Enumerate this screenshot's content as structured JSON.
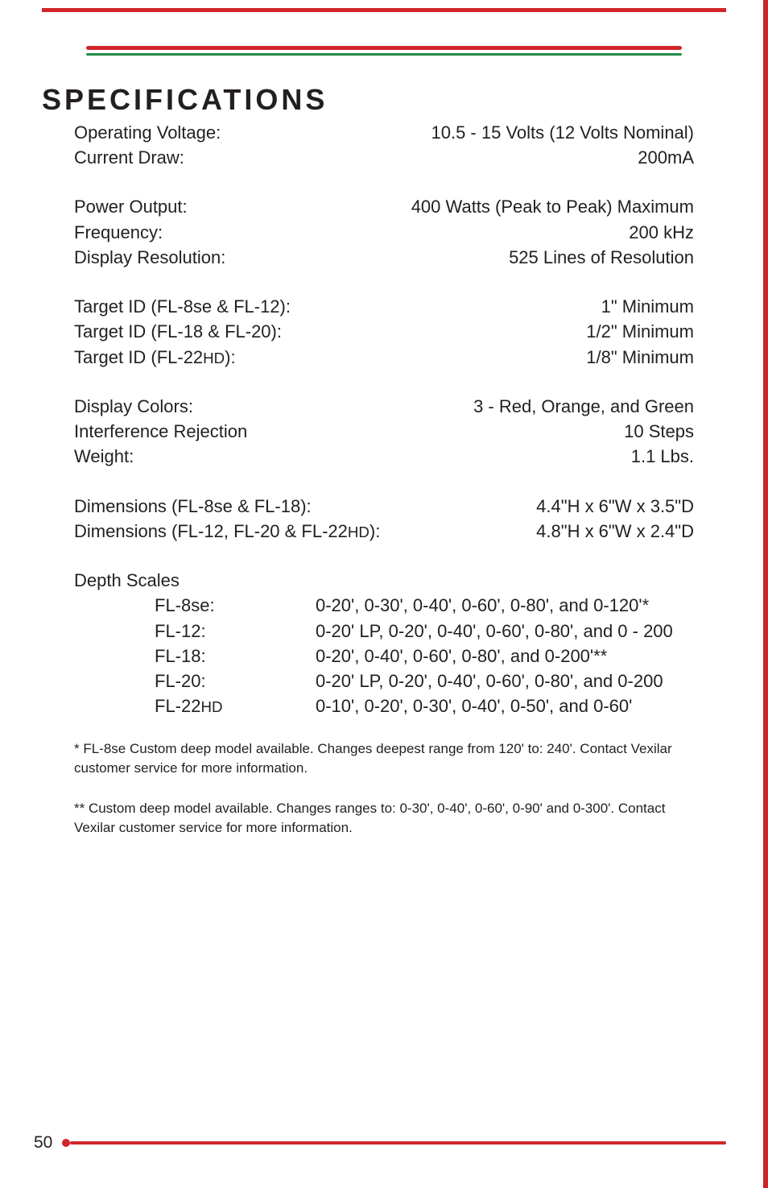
{
  "title": "SPECIFICATIONS",
  "groups": [
    [
      {
        "label": "Operating Voltage:",
        "value": "10.5 - 15 Volts (12 Volts Nominal)"
      },
      {
        "label": "Current Draw:",
        "value": "200mA"
      }
    ],
    [
      {
        "label": "Power Output:",
        "value": "400 Watts (Peak to Peak) Maximum"
      },
      {
        "label": "Frequency:",
        "value": "200 kHz"
      },
      {
        "label": "Display Resolution:",
        "value": "525 Lines of Resolution"
      }
    ],
    [
      {
        "label": "Target ID (FL-8se & FL-12):",
        "value": "1\" Minimum"
      },
      {
        "label": "Target ID (FL-18 & FL-20):",
        "value": "1/2\" Minimum"
      },
      {
        "label": "Target ID (FL-22HD):",
        "value": "1/8\" Minimum",
        "hd": true
      }
    ],
    [
      {
        "label": "Display Colors:",
        "value": "3 - Red, Orange, and Green"
      },
      {
        "label": "Interference Rejection",
        "value": "10 Steps"
      },
      {
        "label": "Weight:",
        "value": "1.1 Lbs."
      }
    ],
    [
      {
        "label": "Dimensions (FL-8se & FL-18):",
        "value": "4.4\"H x 6\"W x 3.5\"D"
      },
      {
        "label": "Dimensions (FL-12, FL-20 & FL-22HD):",
        "value": "4.8\"H x 6\"W x 2.4\"D",
        "hd": true
      }
    ]
  ],
  "depth": {
    "label": "Depth Scales",
    "rows": [
      {
        "key": "FL-8se:",
        "val": "0-20', 0-30', 0-40', 0-60', 0-80', and 0-120'*"
      },
      {
        "key": "FL-12:",
        "val": "0-20' LP, 0-20', 0-40', 0-60', 0-80', and 0 - 200"
      },
      {
        "key": "FL-18:",
        "val": "0-20', 0-40', 0-60', 0-80', and 0-200'**"
      },
      {
        "key": "FL-20:",
        "val": "0-20' LP, 0-20', 0-40', 0-60', 0-80', and 0-200"
      },
      {
        "key": "FL-22HD",
        "val": "0-10', 0-20', 0-30', 0-40', 0-50', and  0-60'",
        "hd": true
      }
    ]
  },
  "footnotes": [
    "* FL-8se Custom deep model available. Changes deepest range from 120' to: 240'. Contact Vexilar customer service for more information.",
    "** Custom deep model available. Changes ranges to: 0-30', 0-40', 0-60', 0-90' and 0-300'. Contact Vexilar customer service for more information."
  ],
  "page_number": "50",
  "colors": {
    "red": "#d1252b",
    "green": "#268b4a",
    "text": "#231f20",
    "bg": "#ffffff"
  }
}
